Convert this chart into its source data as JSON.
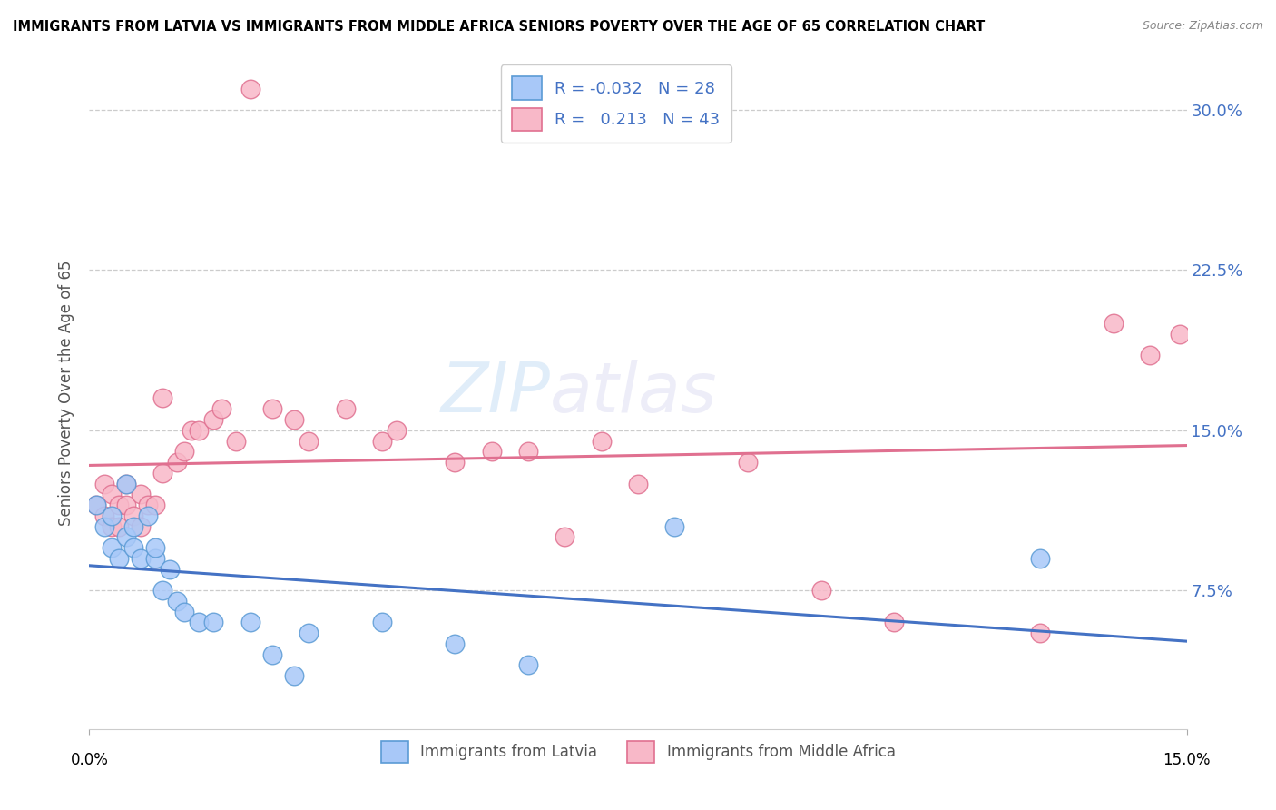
{
  "title": "IMMIGRANTS FROM LATVIA VS IMMIGRANTS FROM MIDDLE AFRICA SENIORS POVERTY OVER THE AGE OF 65 CORRELATION CHART",
  "source": "Source: ZipAtlas.com",
  "ylabel": "Seniors Poverty Over the Age of 65",
  "yticks": [
    7.5,
    15.0,
    22.5,
    30.0
  ],
  "ytick_labels": [
    "7.5%",
    "15.0%",
    "22.5%",
    "30.0%"
  ],
  "xlim": [
    0.0,
    0.15
  ],
  "ylim": [
    0.01,
    0.325
  ],
  "latvia_color": "#a8c8f8",
  "latvia_edge": "#5b9bd5",
  "midafrica_color": "#f8b8c8",
  "midafrica_edge": "#e07090",
  "line_latvia_color": "#4472c4",
  "line_midafrica_color": "#e07090",
  "legend_R_latvia": "-0.032",
  "legend_N_latvia": "28",
  "legend_R_midafrica": "0.213",
  "legend_N_midafrica": "43",
  "latvia_x": [
    0.001,
    0.002,
    0.003,
    0.003,
    0.004,
    0.005,
    0.005,
    0.006,
    0.006,
    0.007,
    0.008,
    0.009,
    0.009,
    0.01,
    0.011,
    0.012,
    0.013,
    0.015,
    0.017,
    0.022,
    0.025,
    0.028,
    0.03,
    0.04,
    0.05,
    0.06,
    0.08,
    0.13
  ],
  "latvia_y": [
    0.115,
    0.105,
    0.095,
    0.11,
    0.09,
    0.1,
    0.125,
    0.095,
    0.105,
    0.09,
    0.11,
    0.09,
    0.095,
    0.075,
    0.085,
    0.07,
    0.065,
    0.06,
    0.06,
    0.06,
    0.045,
    0.035,
    0.055,
    0.06,
    0.05,
    0.04,
    0.105,
    0.09
  ],
  "midafrica_x": [
    0.001,
    0.002,
    0.002,
    0.003,
    0.003,
    0.004,
    0.004,
    0.005,
    0.005,
    0.006,
    0.007,
    0.007,
    0.008,
    0.009,
    0.01,
    0.01,
    0.012,
    0.013,
    0.014,
    0.015,
    0.017,
    0.018,
    0.02,
    0.022,
    0.025,
    0.028,
    0.03,
    0.035,
    0.04,
    0.042,
    0.05,
    0.055,
    0.06,
    0.065,
    0.07,
    0.075,
    0.09,
    0.1,
    0.11,
    0.13,
    0.14,
    0.145,
    0.149
  ],
  "midafrica_y": [
    0.115,
    0.11,
    0.125,
    0.105,
    0.12,
    0.105,
    0.115,
    0.115,
    0.125,
    0.11,
    0.105,
    0.12,
    0.115,
    0.115,
    0.165,
    0.13,
    0.135,
    0.14,
    0.15,
    0.15,
    0.155,
    0.16,
    0.145,
    0.31,
    0.16,
    0.155,
    0.145,
    0.16,
    0.145,
    0.15,
    0.135,
    0.14,
    0.14,
    0.1,
    0.145,
    0.125,
    0.135,
    0.075,
    0.06,
    0.055,
    0.2,
    0.185,
    0.195
  ]
}
